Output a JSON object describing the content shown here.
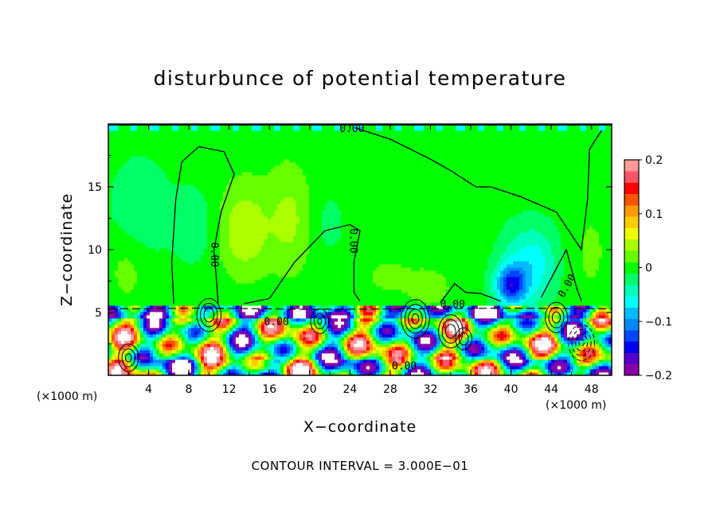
{
  "chart_data": {
    "type": "heatmap",
    "title": "disturbunce of potential temperature",
    "xlabel": "X−coordinate",
    "ylabel": "Z−coordinate",
    "x_unit": "(×1000 m)",
    "note": "CONTOUR INTERVAL = 3.000E−01",
    "xlim": [
      0,
      50
    ],
    "ylim": [
      0,
      20
    ],
    "xticks": [
      4,
      8,
      12,
      16,
      20,
      24,
      28,
      32,
      36,
      40,
      44,
      48
    ],
    "yticks": [
      5,
      10,
      15
    ],
    "colorbar": {
      "range": [
        -0.2,
        0.2
      ],
      "ticks": [
        {
          "value": 0.2,
          "label": "0.2"
        },
        {
          "value": 0.1,
          "label": "0.1"
        },
        {
          "value": 0.0,
          "label": "0"
        },
        {
          "value": -0.1,
          "label": "−0.1"
        },
        {
          "value": -0.2,
          "label": "−0.2"
        }
      ],
      "colors": [
        "#8800aa",
        "#5500cc",
        "#0000ee",
        "#0044ff",
        "#0088ff",
        "#00bbff",
        "#00ffff",
        "#00ffbb",
        "#00ff66",
        "#00ff00",
        "#66ff00",
        "#aaff00",
        "#eeff00",
        "#ffcc00",
        "#ff9900",
        "#ff5500",
        "#ff0000",
        "#ff5566",
        "#ff9999"
      ]
    },
    "contour_labels": [
      {
        "text": "0.00",
        "x": 24.2,
        "z": 19.6
      },
      {
        "text": "0.00",
        "x": 10.5,
        "z": 9.6,
        "rotate": 90
      },
      {
        "text": "0.00",
        "x": 24.3,
        "z": 10.7,
        "rotate": 90
      },
      {
        "text": "0.00",
        "x": 45.6,
        "z": 7.1,
        "rotate": -60
      },
      {
        "text": "0.00",
        "x": 34.2,
        "z": 5.6
      },
      {
        "text": "0.00",
        "x": 16.7,
        "z": 4.2
      },
      {
        "text": "0.00",
        "x": 29.4,
        "z": 0.7
      }
    ]
  }
}
